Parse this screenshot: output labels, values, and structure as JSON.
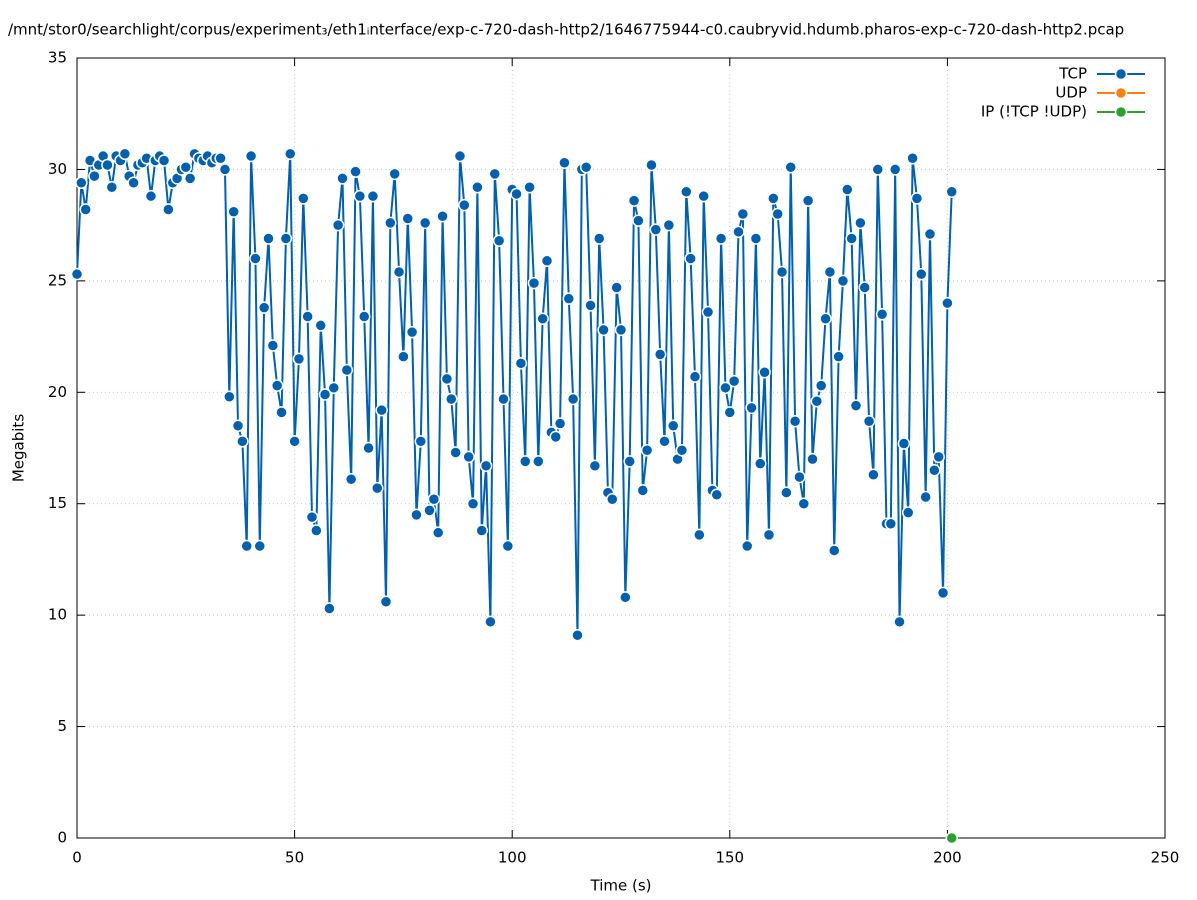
{
  "chart_data": {
    "type": "line",
    "title": "/mnt/stor0/searchlight/corpus/experiment₃/eth1ᵢnterface/exp-c-720-dash-http2/1646775944-c0.caubryvid.hdumb.pharos-exp-c-720-dash-http2.pcap",
    "xlabel": "Time (s)",
    "ylabel": "Megabits",
    "xlim": [
      0,
      250
    ],
    "xticks": [
      0,
      50,
      100,
      150,
      200,
      250
    ],
    "ylim": [
      0,
      35
    ],
    "yticks": [
      0,
      5,
      10,
      15,
      20,
      25,
      30,
      35
    ],
    "grid": true,
    "legend": "top-right",
    "series": [
      {
        "name": "TCP",
        "color": "#0060ad",
        "x": [
          0,
          1,
          2,
          3,
          4,
          5,
          6,
          7,
          8,
          9,
          10,
          11,
          12,
          13,
          14,
          15,
          16,
          17,
          18,
          19,
          20,
          21,
          22,
          23,
          24,
          25,
          26,
          27,
          28,
          29,
          30,
          31,
          32,
          33,
          34,
          35,
          36,
          37,
          38,
          39,
          40,
          41,
          42,
          43,
          44,
          45,
          46,
          47,
          48,
          49,
          50,
          51,
          52,
          53,
          54,
          55,
          56,
          57,
          58,
          59,
          60,
          61,
          62,
          63,
          64,
          65,
          66,
          67,
          68,
          69,
          70,
          71,
          72,
          73,
          74,
          75,
          76,
          77,
          78,
          79,
          80,
          81,
          82,
          83,
          84,
          85,
          86,
          87,
          88,
          89,
          90,
          91,
          92,
          93,
          94,
          95,
          96,
          97,
          98,
          99,
          100,
          101,
          102,
          103,
          104,
          105,
          106,
          107,
          108,
          109,
          110,
          111,
          112,
          113,
          114,
          115,
          116,
          117,
          118,
          119,
          120,
          121,
          122,
          123,
          124,
          125,
          126,
          127,
          128,
          129,
          130,
          131,
          132,
          133,
          134,
          135,
          136,
          137,
          138,
          139,
          140,
          141,
          142,
          143,
          144,
          145,
          146,
          147,
          148,
          149,
          150,
          151,
          152,
          153,
          154,
          155,
          156,
          157,
          158,
          159,
          160,
          161,
          162,
          163,
          164,
          165,
          166,
          167,
          168,
          169,
          170,
          171,
          172,
          173,
          174,
          175,
          176,
          177,
          178,
          179,
          180,
          181,
          182,
          183,
          184,
          185,
          186,
          187,
          188,
          189,
          190,
          191,
          192,
          193,
          194,
          195,
          196,
          197,
          198,
          199,
          200,
          201
        ],
        "values": [
          25.3,
          29.4,
          28.2,
          30.4,
          29.7,
          30.2,
          30.6,
          30.2,
          29.2,
          30.6,
          30.4,
          30.7,
          29.7,
          29.4,
          30.2,
          30.3,
          30.5,
          28.8,
          30.4,
          30.6,
          30.4,
          28.2,
          29.4,
          29.6,
          30.0,
          30.1,
          29.6,
          30.7,
          30.5,
          30.4,
          30.6,
          30.3,
          30.5,
          30.5,
          30.0,
          19.8,
          28.1,
          18.5,
          17.8,
          13.1,
          30.6,
          26.0,
          13.1,
          23.8,
          26.9,
          22.1,
          20.3,
          19.1,
          26.9,
          30.7,
          17.8,
          21.5,
          28.7,
          23.4,
          14.4,
          13.8,
          23.0,
          19.9,
          10.3,
          20.2,
          27.5,
          29.6,
          21.0,
          16.1,
          29.9,
          28.8,
          23.4,
          17.5,
          28.8,
          15.7,
          19.2,
          10.6,
          27.6,
          29.8,
          25.4,
          21.6,
          27.8,
          22.7,
          14.5,
          17.8,
          27.6,
          14.7,
          15.2,
          13.7,
          27.9,
          20.6,
          19.7,
          17.3,
          30.6,
          28.4,
          17.1,
          15.0,
          29.2,
          13.8,
          16.7,
          9.7,
          29.8,
          26.8,
          19.7,
          13.1,
          29.1,
          28.9,
          21.3,
          16.9,
          29.2,
          24.9,
          16.9,
          23.3,
          25.9,
          18.2,
          18.0,
          18.6,
          30.3,
          24.2,
          19.7,
          9.1,
          30.0,
          30.1,
          23.9,
          16.7,
          26.9,
          22.8,
          15.5,
          15.2,
          24.7,
          22.8,
          10.8,
          16.9,
          28.6,
          27.7,
          15.6,
          17.4,
          30.2,
          27.3,
          21.7,
          17.8,
          27.5,
          18.5,
          17.0,
          17.4,
          29.0,
          26.0,
          20.7,
          13.6,
          28.8,
          23.6,
          15.6,
          15.4,
          26.9,
          20.2,
          19.1,
          20.5,
          27.2,
          28.0,
          13.1,
          19.3,
          26.9,
          16.8,
          20.9,
          13.6,
          28.7,
          28.0,
          25.4,
          15.5,
          30.1,
          18.7,
          16.2,
          15.0,
          28.6,
          17.0,
          19.6,
          20.3,
          23.3,
          25.4,
          12.9,
          21.6,
          25.0,
          29.1,
          26.9,
          19.4,
          27.6,
          24.7,
          18.7,
          16.3,
          30.0,
          23.5,
          14.1,
          14.1,
          30.0,
          9.7,
          17.7,
          14.6,
          30.5,
          28.7,
          25.3,
          15.3,
          27.1,
          16.5,
          17.1,
          11.0,
          24.0,
          29.0
        ]
      },
      {
        "name": "UDP",
        "color": "#ff7f0e",
        "x": [],
        "values": []
      },
      {
        "name": "IP (!TCP  !UDP)",
        "color": "#2ca02c",
        "x": [
          201
        ],
        "values": [
          0
        ]
      }
    ]
  }
}
